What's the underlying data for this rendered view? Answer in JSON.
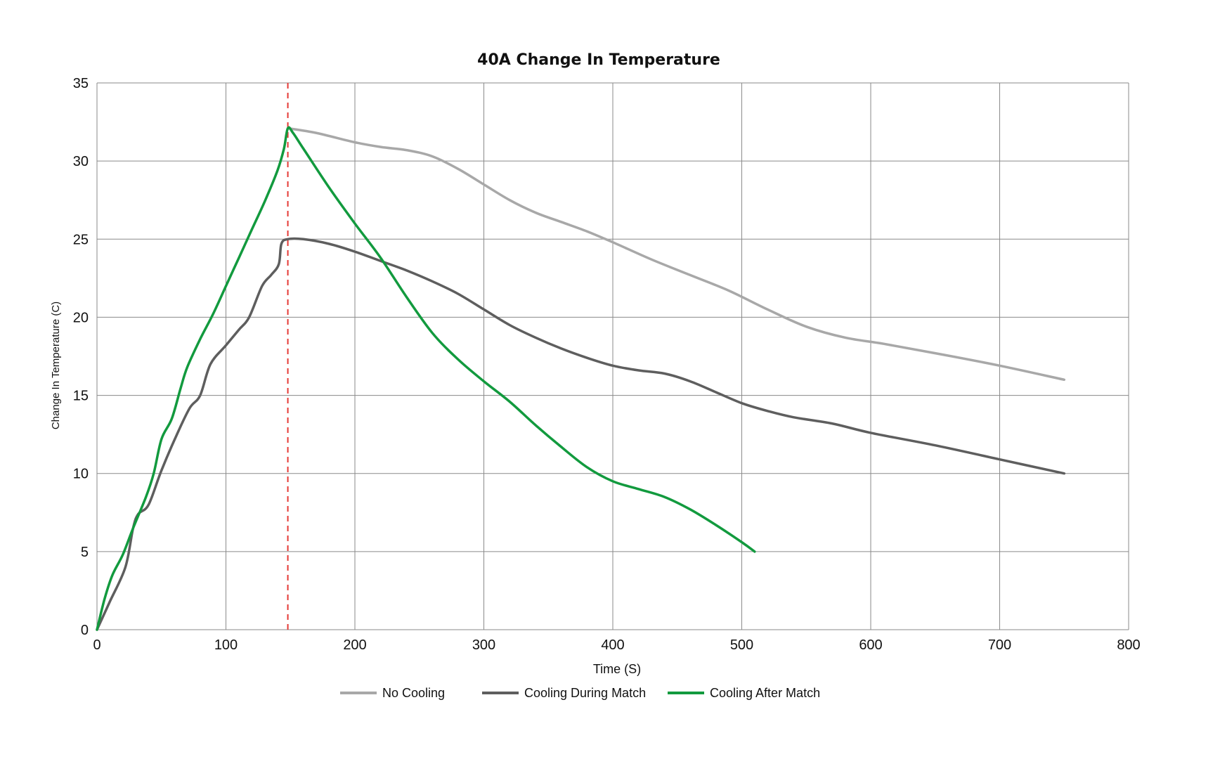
{
  "chart_data": {
    "type": "line",
    "title": "40A Change In Temperature",
    "xlabel": "Time (S)",
    "ylabel": "Change In Temperature (C)",
    "xlim": [
      0,
      800
    ],
    "ylim": [
      0,
      35
    ],
    "xticks": [
      "0",
      "100",
      "200",
      "300",
      "400",
      "500",
      "600",
      "700",
      "800"
    ],
    "yticks": [
      "0",
      "5",
      "10",
      "15",
      "20",
      "25",
      "30",
      "35"
    ],
    "grid": true,
    "legend_position": "bottom",
    "vertical_marker": {
      "x": 148,
      "color": "#e53935",
      "style": "dashed"
    },
    "series": [
      {
        "name": "No Cooling",
        "color": "#a8a8a8",
        "points": [
          [
            148,
            32.1
          ],
          [
            170,
            31.8
          ],
          [
            200,
            31.2
          ],
          [
            220,
            30.9
          ],
          [
            240,
            30.7
          ],
          [
            260,
            30.3
          ],
          [
            280,
            29.5
          ],
          [
            300,
            28.5
          ],
          [
            320,
            27.5
          ],
          [
            340,
            26.7
          ],
          [
            360,
            26.1
          ],
          [
            380,
            25.5
          ],
          [
            400,
            24.8
          ],
          [
            430,
            23.7
          ],
          [
            460,
            22.7
          ],
          [
            490,
            21.7
          ],
          [
            520,
            20.5
          ],
          [
            550,
            19.4
          ],
          [
            580,
            18.7
          ],
          [
            610,
            18.3
          ],
          [
            650,
            17.7
          ],
          [
            700,
            16.9
          ],
          [
            750,
            16.0
          ]
        ]
      },
      {
        "name": "Cooling During Match",
        "color": "#5e5e5e",
        "points": [
          [
            0,
            0
          ],
          [
            10,
            1.8
          ],
          [
            22,
            4.0
          ],
          [
            28,
            6.5
          ],
          [
            32,
            7.4
          ],
          [
            40,
            8.0
          ],
          [
            50,
            10.2
          ],
          [
            62,
            12.5
          ],
          [
            72,
            14.2
          ],
          [
            80,
            15.0
          ],
          [
            88,
            17.0
          ],
          [
            100,
            18.2
          ],
          [
            110,
            19.2
          ],
          [
            118,
            20.0
          ],
          [
            128,
            22.0
          ],
          [
            135,
            22.7
          ],
          [
            141,
            23.4
          ],
          [
            143,
            24.7
          ],
          [
            148,
            25.0
          ],
          [
            160,
            25.0
          ],
          [
            180,
            24.7
          ],
          [
            200,
            24.2
          ],
          [
            220,
            23.6
          ],
          [
            240,
            23.0
          ],
          [
            260,
            22.3
          ],
          [
            280,
            21.5
          ],
          [
            300,
            20.5
          ],
          [
            320,
            19.5
          ],
          [
            340,
            18.7
          ],
          [
            360,
            18.0
          ],
          [
            380,
            17.4
          ],
          [
            400,
            16.9
          ],
          [
            420,
            16.6
          ],
          [
            440,
            16.4
          ],
          [
            460,
            15.9
          ],
          [
            480,
            15.2
          ],
          [
            500,
            14.5
          ],
          [
            520,
            14.0
          ],
          [
            540,
            13.6
          ],
          [
            570,
            13.2
          ],
          [
            600,
            12.6
          ],
          [
            650,
            11.8
          ],
          [
            700,
            10.9
          ],
          [
            750,
            10.0
          ]
        ]
      },
      {
        "name": "Cooling After Match",
        "color": "#129a3e",
        "points": [
          [
            0,
            0
          ],
          [
            6,
            2.0
          ],
          [
            12,
            3.5
          ],
          [
            20,
            4.8
          ],
          [
            28,
            6.5
          ],
          [
            38,
            8.5
          ],
          [
            44,
            10.0
          ],
          [
            50,
            12.2
          ],
          [
            58,
            13.5
          ],
          [
            65,
            15.5
          ],
          [
            70,
            16.8
          ],
          [
            80,
            18.6
          ],
          [
            90,
            20.2
          ],
          [
            100,
            22.0
          ],
          [
            110,
            23.8
          ],
          [
            120,
            25.6
          ],
          [
            130,
            27.4
          ],
          [
            140,
            29.4
          ],
          [
            145,
            30.8
          ],
          [
            148,
            32.1
          ],
          [
            152,
            31.8
          ],
          [
            160,
            30.8
          ],
          [
            180,
            28.3
          ],
          [
            200,
            26.0
          ],
          [
            220,
            23.8
          ],
          [
            240,
            21.3
          ],
          [
            260,
            19.0
          ],
          [
            280,
            17.3
          ],
          [
            300,
            15.9
          ],
          [
            320,
            14.6
          ],
          [
            340,
            13.1
          ],
          [
            360,
            11.7
          ],
          [
            380,
            10.4
          ],
          [
            400,
            9.5
          ],
          [
            420,
            9.0
          ],
          [
            440,
            8.5
          ],
          [
            460,
            7.7
          ],
          [
            480,
            6.7
          ],
          [
            500,
            5.6
          ],
          [
            510,
            5.0
          ]
        ]
      }
    ]
  }
}
